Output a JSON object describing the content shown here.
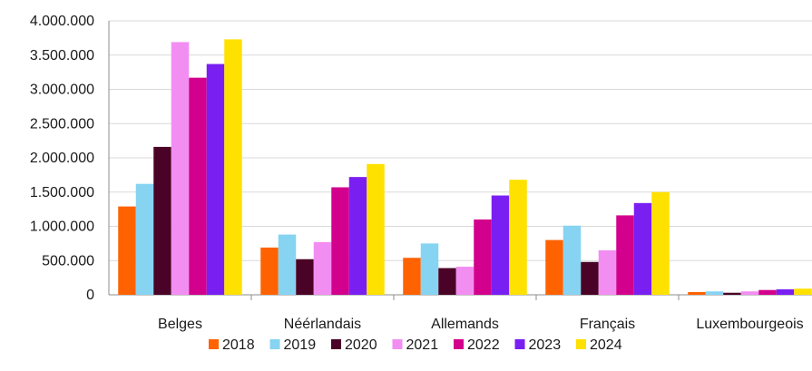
{
  "chart_data": {
    "type": "bar",
    "title": "",
    "xlabel": "",
    "ylabel": "",
    "ylim": [
      0,
      4000000
    ],
    "y_ticks": [
      0,
      500000,
      1000000,
      1500000,
      2000000,
      2500000,
      3000000,
      3500000,
      4000000
    ],
    "y_tick_labels": [
      "0",
      "500.000",
      "1.000.000",
      "1.500.000",
      "2.000.000",
      "2.500.000",
      "3.000.000",
      "3.500.000",
      "4.000.000"
    ],
    "grid": true,
    "legend_position": "bottom",
    "categories": [
      "Belges",
      "Néérlandais",
      "Allemands",
      "Français",
      "Luxembourgeois"
    ],
    "series": [
      {
        "name": "2018",
        "color": "#FF6200",
        "values": [
          1290000,
          690000,
          540000,
          800000,
          40000
        ]
      },
      {
        "name": "2019",
        "color": "#87D3F2",
        "values": [
          1620000,
          880000,
          750000,
          1010000,
          50000
        ]
      },
      {
        "name": "2020",
        "color": "#4A0326",
        "values": [
          2160000,
          520000,
          390000,
          480000,
          30000
        ]
      },
      {
        "name": "2021",
        "color": "#F28EF2",
        "values": [
          3690000,
          770000,
          410000,
          650000,
          50000
        ]
      },
      {
        "name": "2022",
        "color": "#D2008C",
        "values": [
          3170000,
          1570000,
          1100000,
          1160000,
          70000
        ]
      },
      {
        "name": "2023",
        "color": "#7A1FF2",
        "values": [
          3370000,
          1720000,
          1450000,
          1340000,
          80000
        ]
      },
      {
        "name": "2024",
        "color": "#FFE100",
        "values": [
          3730000,
          1910000,
          1680000,
          1500000,
          90000
        ]
      }
    ]
  }
}
